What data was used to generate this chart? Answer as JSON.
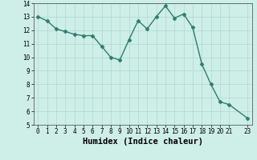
{
  "x": [
    0,
    1,
    2,
    3,
    4,
    5,
    6,
    7,
    8,
    9,
    10,
    11,
    12,
    13,
    14,
    15,
    16,
    17,
    18,
    19,
    20,
    21,
    23
  ],
  "y": [
    13.0,
    12.7,
    12.1,
    11.9,
    11.7,
    11.6,
    11.6,
    10.8,
    10.0,
    9.8,
    11.3,
    12.7,
    12.1,
    13.0,
    13.8,
    12.9,
    13.2,
    12.2,
    9.5,
    8.0,
    6.7,
    6.5,
    5.5
  ],
  "line_color": "#2e7d6e",
  "marker": "D",
  "markersize": 2.5,
  "linewidth": 1.0,
  "background_color": "#ceeee8",
  "grid_color": "#b0d8d2",
  "xlabel": "Humidex (Indice chaleur)",
  "xlim": [
    -0.5,
    23.5
  ],
  "ylim": [
    5,
    14
  ],
  "yticks": [
    5,
    6,
    7,
    8,
    9,
    10,
    11,
    12,
    13,
    14
  ],
  "xticks": [
    0,
    1,
    2,
    3,
    4,
    5,
    6,
    7,
    8,
    9,
    10,
    11,
    12,
    13,
    14,
    15,
    16,
    17,
    18,
    19,
    20,
    21,
    23
  ],
  "tick_fontsize": 5.5,
  "xlabel_fontsize": 7.5
}
